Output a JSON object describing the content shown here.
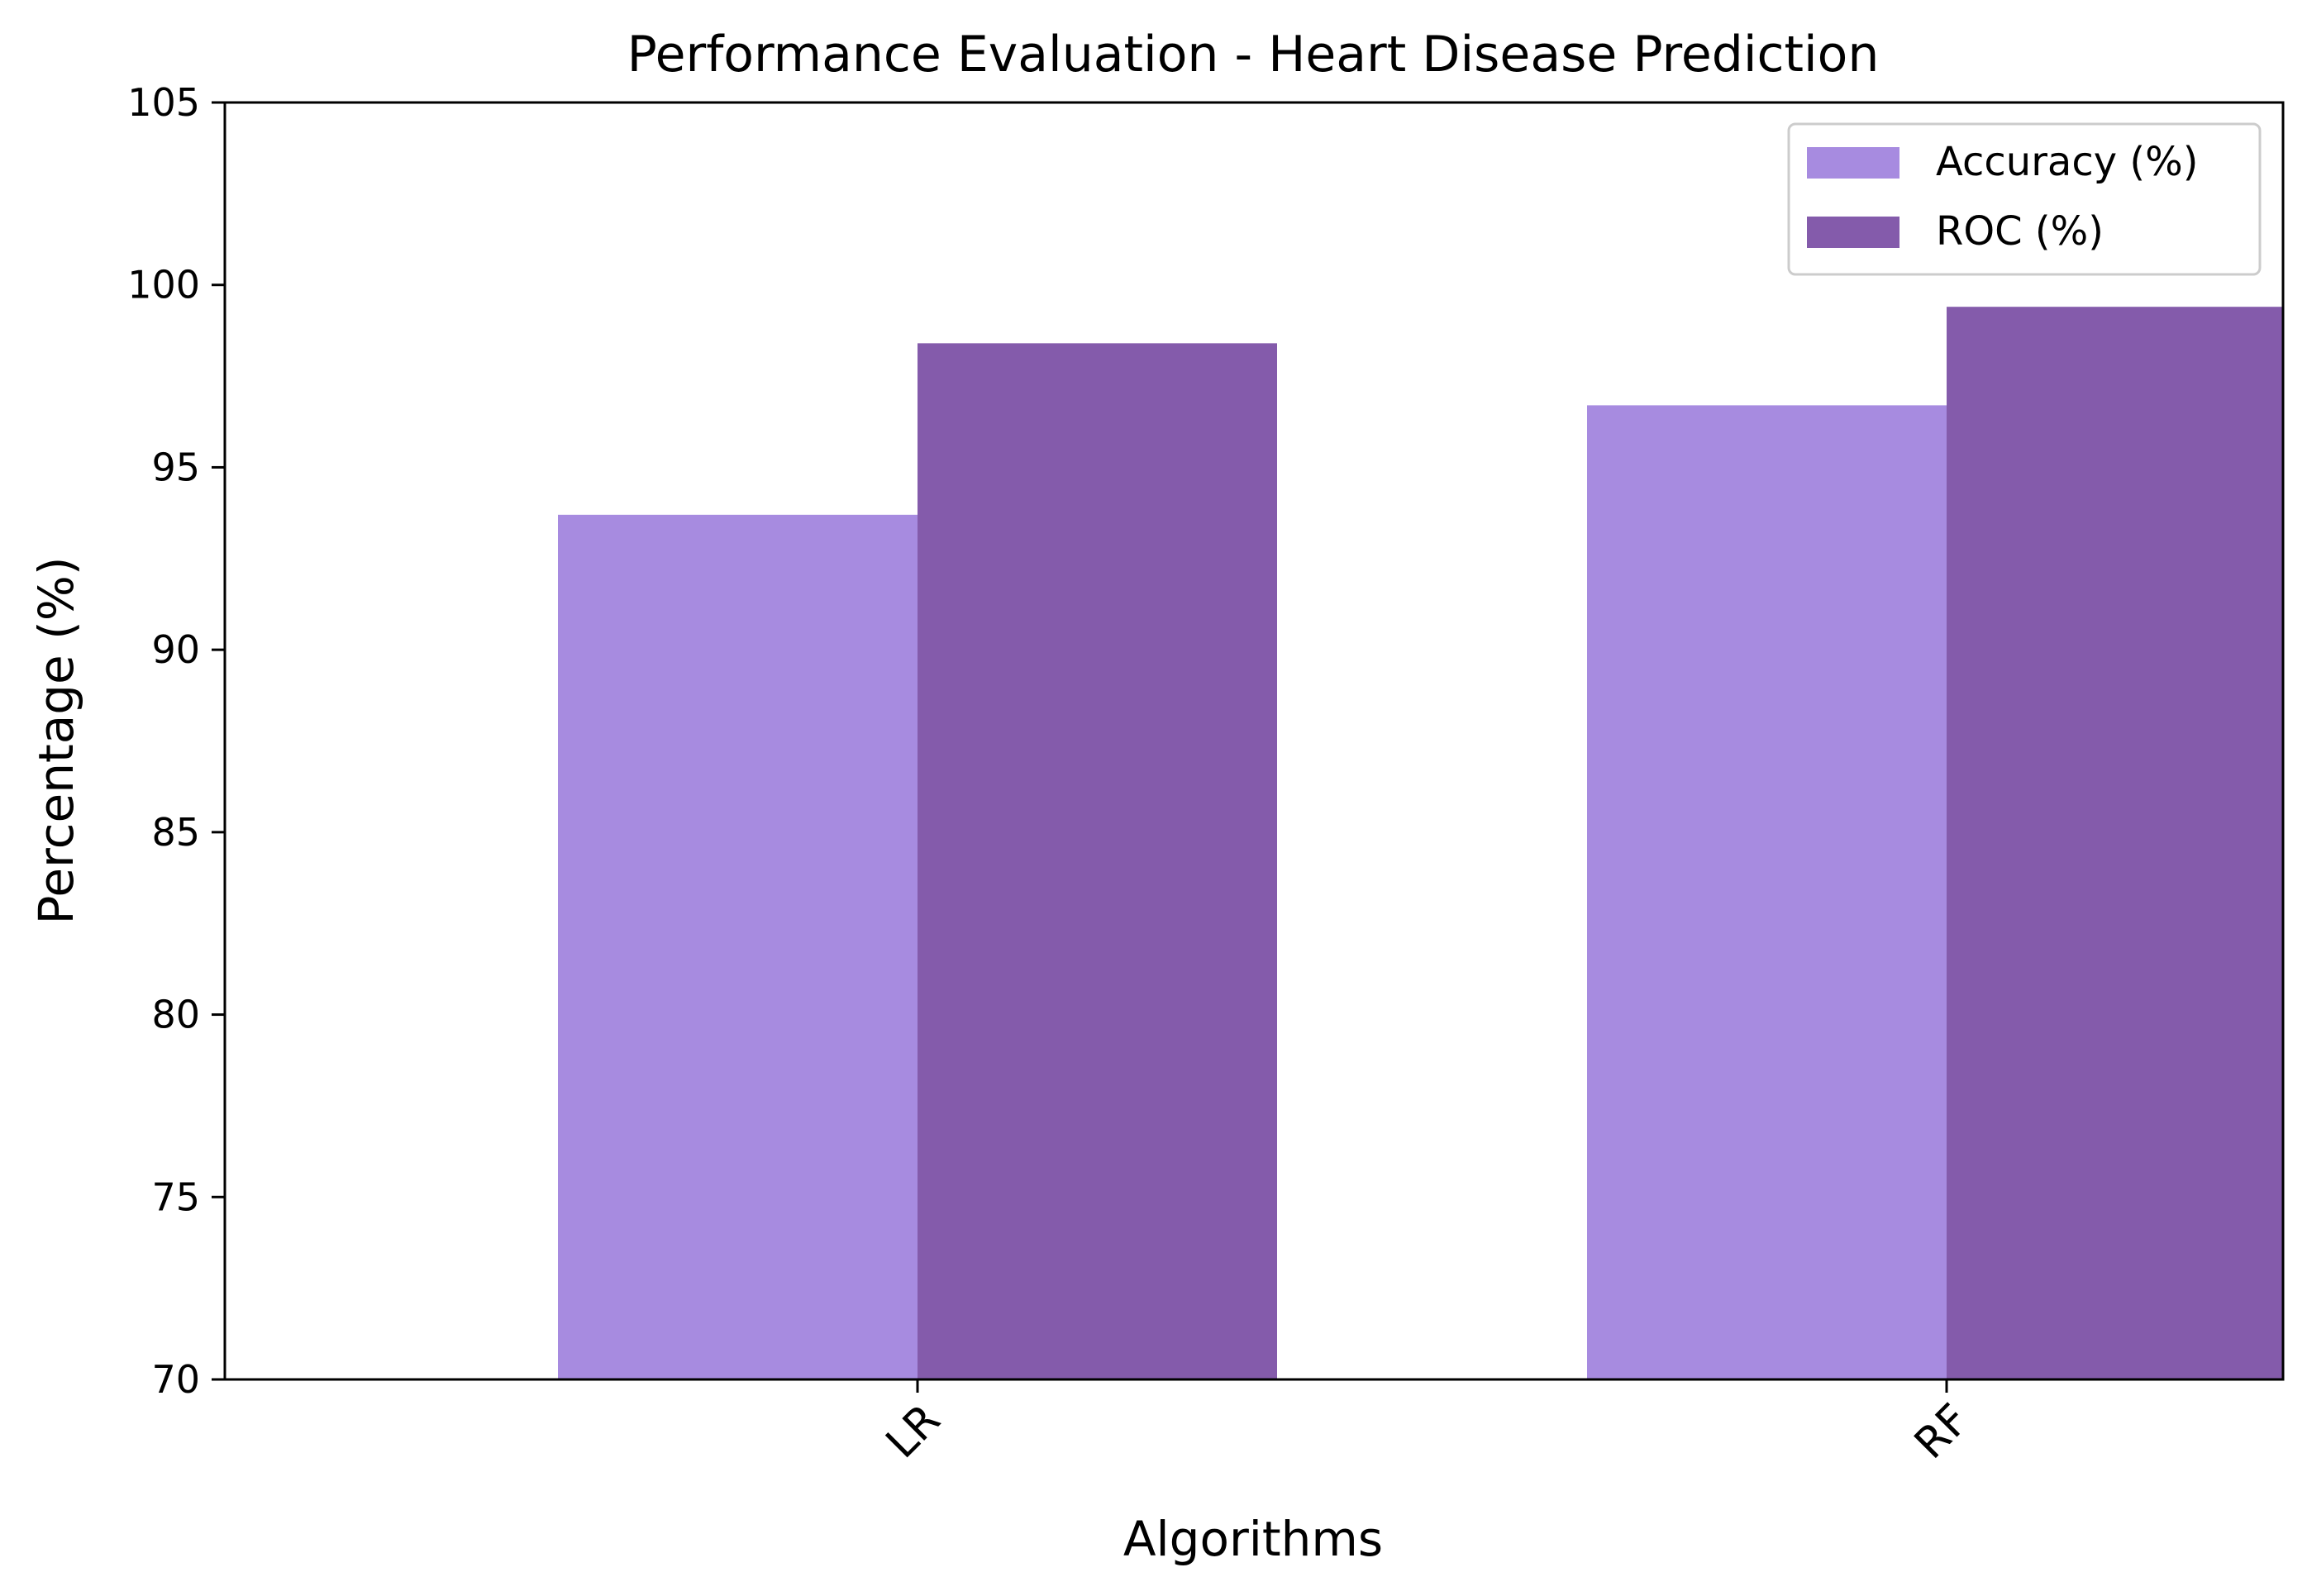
{
  "chart_data": {
    "type": "bar",
    "title": "Performance Evaluation - Heart Disease Prediction",
    "xlabel": "Algorithms",
    "ylabel": "Percentage (%)",
    "categories": [
      "LR",
      "RF"
    ],
    "series": [
      {
        "name": "Accuracy (%)",
        "values": [
          93.7,
          96.7
        ],
        "color": "#a78be0"
      },
      {
        "name": "ROC (%)",
        "values": [
          98.4,
          99.4
        ],
        "color": "#845bab"
      }
    ],
    "ylim": [
      70,
      105
    ],
    "yticks": [
      70,
      75,
      80,
      85,
      90,
      95,
      100,
      105
    ],
    "grid": false,
    "legend_position": "top-right",
    "xtick_rotation": 45
  }
}
